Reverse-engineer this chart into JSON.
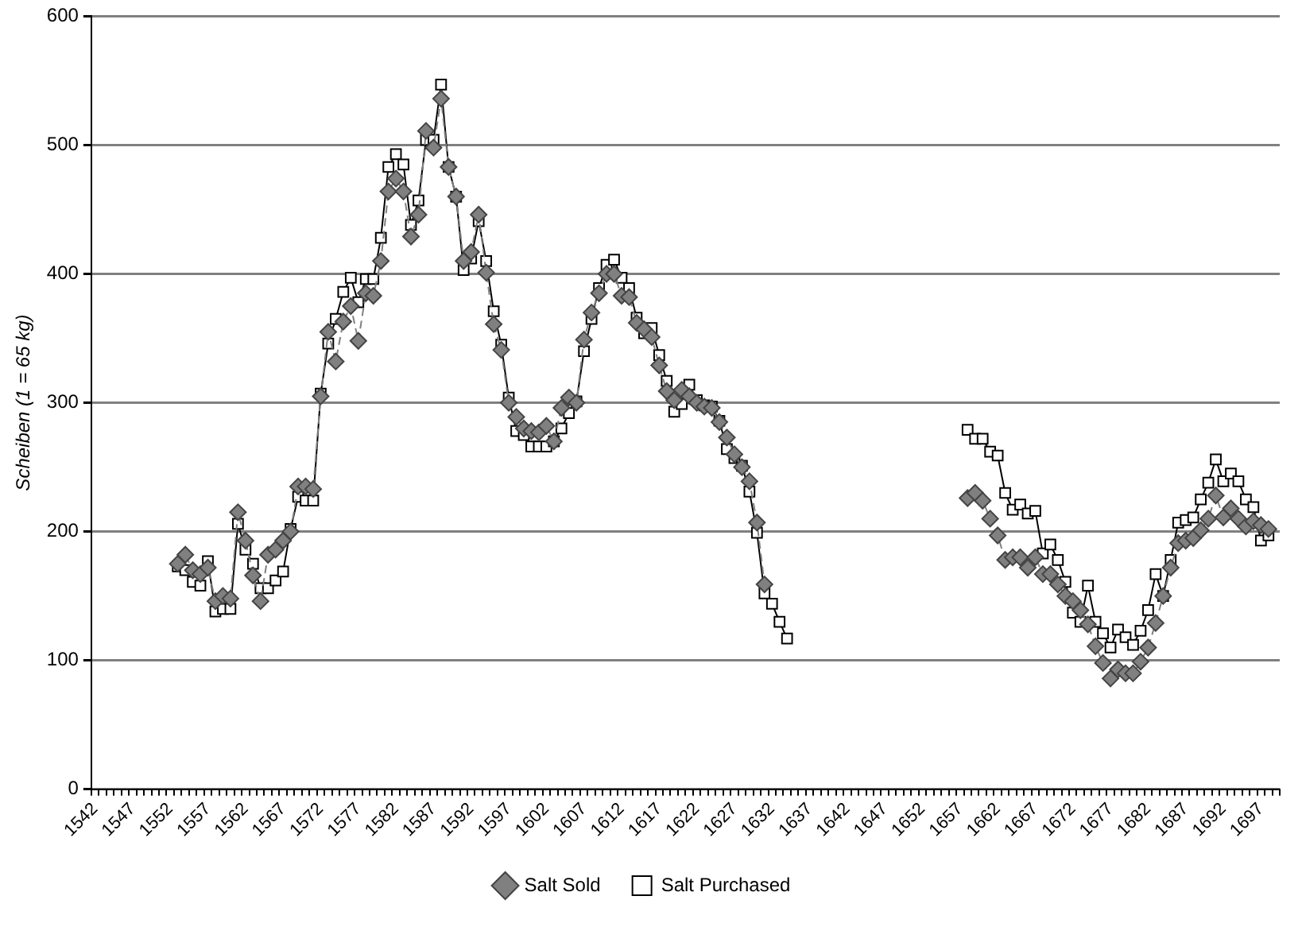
{
  "chart_data": {
    "type": "line",
    "ylabel": "Scheiben (1 = 65 kg)",
    "categories": [
      "1542",
      null,
      null,
      null,
      null,
      "1547",
      null,
      null,
      null,
      null,
      "1552",
      null,
      null,
      null,
      null,
      "1557",
      null,
      null,
      null,
      null,
      "1562",
      null,
      null,
      null,
      null,
      "1567",
      null,
      null,
      null,
      null,
      "1572",
      null,
      null,
      null,
      null,
      "1577",
      null,
      null,
      null,
      null,
      "1582",
      null,
      null,
      null,
      null,
      "1587",
      null,
      null,
      null,
      null,
      "1592",
      null,
      null,
      null,
      null,
      "1597",
      null,
      null,
      null,
      null,
      "1602",
      null,
      null,
      null,
      null,
      "1607",
      null,
      null,
      null,
      null,
      "1612",
      null,
      null,
      null,
      null,
      "1617",
      null,
      null,
      null,
      null,
      "1622",
      null,
      null,
      null,
      null,
      "1627",
      null,
      null,
      null,
      null,
      "1632",
      null,
      null,
      null,
      null,
      "1637",
      null,
      null,
      null,
      null,
      "1642",
      null,
      null,
      null,
      null,
      "1647",
      null,
      null,
      null,
      null,
      "1652",
      null,
      null,
      null,
      null,
      "1657",
      null,
      null,
      null,
      null,
      "1662",
      null,
      null,
      null,
      null,
      "1667",
      null,
      null,
      null,
      null,
      "1672",
      null,
      null,
      null,
      null,
      "1677",
      null,
      null,
      null,
      null,
      "1682",
      null,
      null,
      null,
      null,
      "1687",
      null,
      null,
      null,
      null,
      "1692",
      null,
      null,
      null,
      null,
      "1697",
      null,
      null
    ],
    "series": [
      {
        "name": "Salt Sold",
        "color": "#808080",
        "marker": "diamond",
        "line_style": "dashed",
        "values": [
          null,
          null,
          null,
          null,
          null,
          null,
          null,
          null,
          null,
          null,
          null,
          175,
          182,
          170,
          167,
          172,
          146,
          150,
          148,
          215,
          193,
          166,
          146,
          182,
          186,
          193,
          200,
          235,
          235,
          233,
          305,
          355,
          332,
          363,
          375,
          348,
          385,
          383,
          410,
          464,
          474,
          464,
          429,
          446,
          511,
          498,
          536,
          483,
          460,
          410,
          417,
          446,
          401,
          361,
          341,
          300,
          289,
          280,
          278,
          277,
          282,
          270,
          296,
          304,
          300,
          349,
          370,
          385,
          400,
          400,
          383,
          382,
          362,
          357,
          351,
          329,
          309,
          302,
          310,
          305,
          300,
          297,
          296,
          285,
          273,
          260,
          250,
          239,
          207,
          159,
          null,
          null,
          null,
          null,
          null,
          null,
          null,
          null,
          null,
          null,
          null,
          null,
          null,
          null,
          null,
          null,
          null,
          null,
          null,
          null,
          null,
          null,
          null,
          null,
          null,
          null,
          226,
          230,
          224,
          210,
          197,
          178,
          180,
          180,
          172,
          180,
          167,
          167,
          159,
          150,
          146,
          139,
          128,
          111,
          98,
          86,
          93,
          90,
          90,
          99,
          110,
          129,
          150,
          172,
          191,
          193,
          195,
          201,
          210,
          228,
          211,
          218,
          210,
          204,
          208,
          205,
          202,
          null
        ]
      },
      {
        "name": "Salt Purchased",
        "color": "#000000",
        "marker": "square",
        "line_style": "solid",
        "values": [
          null,
          null,
          null,
          null,
          null,
          null,
          null,
          null,
          null,
          null,
          null,
          173,
          170,
          161,
          158,
          177,
          138,
          140,
          140,
          206,
          186,
          175,
          156,
          156,
          162,
          169,
          202,
          227,
          224,
          224,
          307,
          346,
          365,
          386,
          397,
          378,
          396,
          396,
          428,
          483,
          493,
          485,
          438,
          457,
          504,
          504,
          547,
          483,
          460,
          403,
          412,
          441,
          410,
          371,
          345,
          304,
          278,
          275,
          266,
          266,
          266,
          270,
          280,
          292,
          301,
          340,
          365,
          389,
          407,
          411,
          397,
          389,
          366,
          354,
          358,
          337,
          317,
          293,
          299,
          314,
          302,
          298,
          297,
          286,
          264,
          257,
          251,
          231,
          199,
          152,
          144,
          130,
          117,
          null,
          null,
          null,
          null,
          null,
          null,
          null,
          null,
          null,
          null,
          null,
          null,
          null,
          null,
          null,
          null,
          null,
          null,
          null,
          null,
          null,
          null,
          null,
          279,
          272,
          272,
          262,
          259,
          230,
          217,
          221,
          214,
          216,
          183,
          190,
          178,
          161,
          137,
          130,
          158,
          130,
          121,
          110,
          124,
          118,
          112,
          123,
          139,
          167,
          150,
          178,
          207,
          209,
          211,
          225,
          238,
          256,
          239,
          245,
          239,
          225,
          219,
          193,
          197,
          null
        ]
      }
    ],
    "ylim": [
      0,
      600
    ],
    "yticks": [
      0,
      100,
      200,
      300,
      400,
      500,
      600
    ],
    "grid": "y",
    "legend": "bottom"
  }
}
